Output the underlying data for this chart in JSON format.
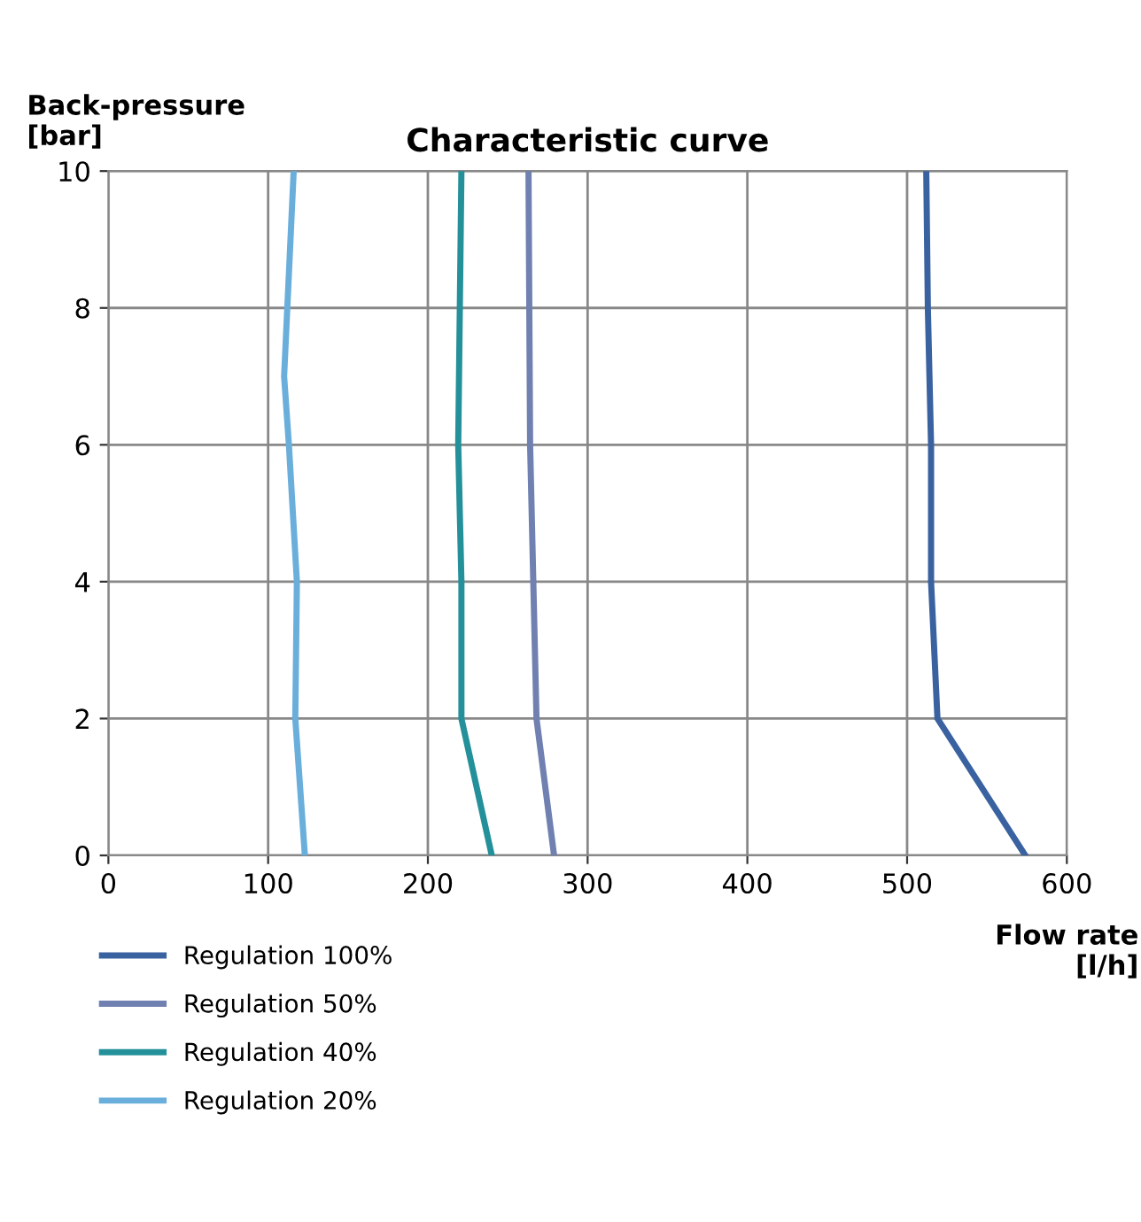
{
  "chart_data": {
    "type": "line",
    "title": "Characteristic curve",
    "xlabel": "Flow rate\n[l/h]",
    "ylabel": "Back-pressure\n[bar]",
    "xlim": [
      0,
      600
    ],
    "xticks": [
      0,
      100,
      200,
      300,
      400,
      500,
      600
    ],
    "ylim": [
      0,
      10
    ],
    "yticks": [
      0,
      2,
      4,
      6,
      8,
      10
    ],
    "grid": true,
    "legend": "bottom left",
    "marker": "none",
    "line_style": "solid",
    "series": [
      {
        "name": "Regulation 100%",
        "color": "#3a62a0",
        "x": [
          574,
          519,
          515,
          515,
          513,
          512
        ],
        "values": [
          0,
          2,
          4,
          6,
          8,
          10
        ]
      },
      {
        "name": "Regulation 50%",
        "color": "#7080b0",
        "x": [
          279,
          268,
          266,
          264,
          263
        ],
        "values": [
          0,
          2,
          4,
          6,
          10
        ]
      },
      {
        "name": "Regulation 40%",
        "color": "#23909a",
        "x": [
          240,
          221,
          221,
          219,
          221
        ],
        "values": [
          0,
          2,
          4,
          6,
          10
        ]
      },
      {
        "name": "Regulation 20%",
        "color": "#6aaedb",
        "x": [
          123,
          117,
          118,
          113,
          110,
          112,
          116
        ],
        "values": [
          0,
          2,
          4,
          6,
          7,
          8,
          10
        ]
      }
    ]
  }
}
